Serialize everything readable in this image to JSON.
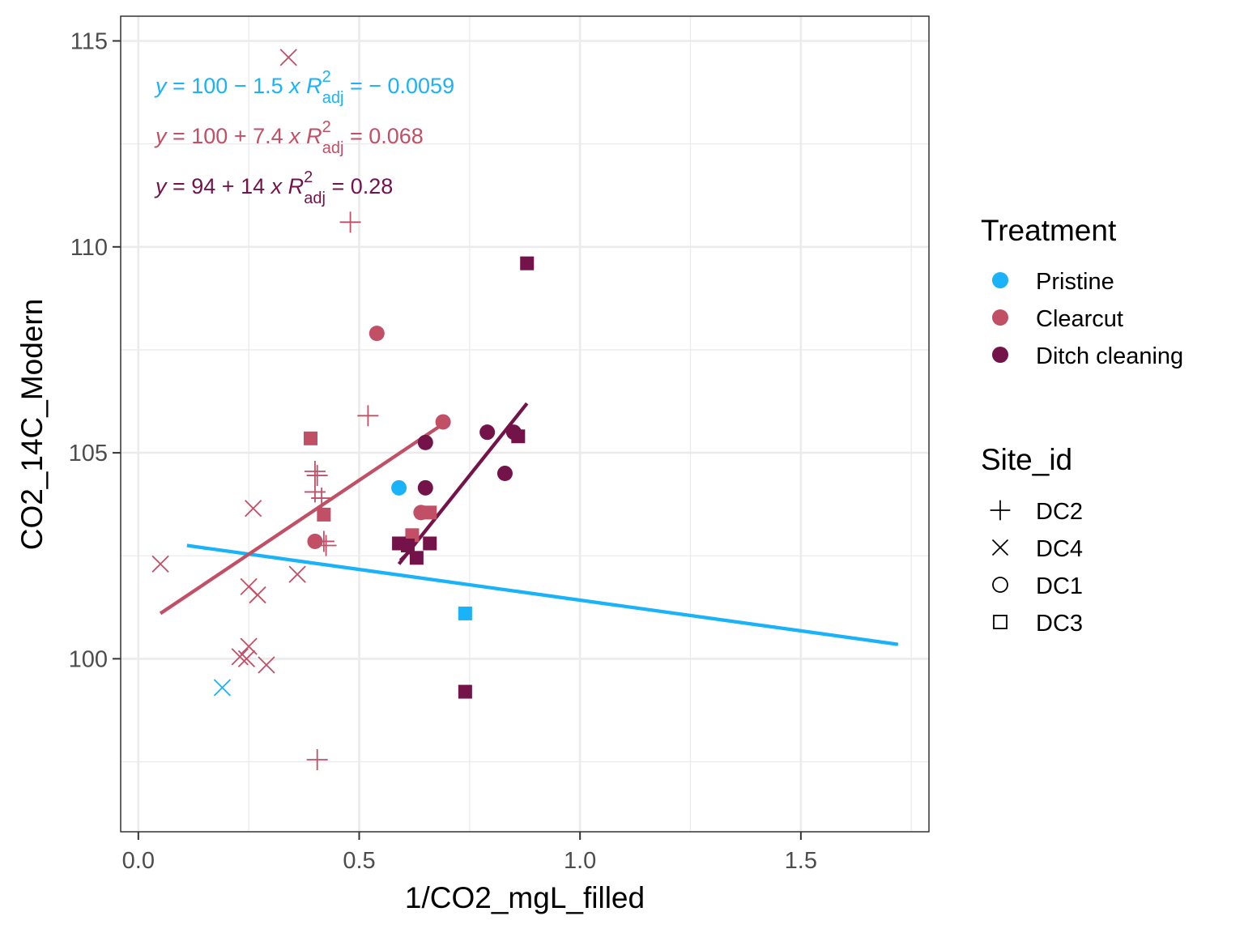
{
  "chart_data": {
    "type": "scatter",
    "title": "",
    "xlabel": "1/CO2_mgL_filled",
    "ylabel": "CO2_14C_Modern",
    "xlim": [
      -0.04,
      1.79
    ],
    "ylim": [
      95.8,
      115.6
    ],
    "x_ticks": [
      0.0,
      0.5,
      1.0,
      1.5
    ],
    "x_tick_labels": [
      "0.0",
      "0.5",
      "1.0",
      "1.5"
    ],
    "y_ticks": [
      100,
      105,
      110,
      115
    ],
    "y_tick_labels": [
      "100",
      "105",
      "110",
      "115"
    ],
    "grid": true,
    "legend_position": "right",
    "colors": {
      "Pristine": "#1ab2f8",
      "Clearcut": "#c14f66",
      "Ditch cleaning": "#741349"
    },
    "legend": {
      "treatment_title": "Treatment",
      "treatment_items": [
        "Pristine",
        "Clearcut",
        "Ditch cleaning"
      ],
      "site_title": "Site_id",
      "site_items": [
        {
          "label": "DC2",
          "shape": "plus"
        },
        {
          "label": "DC4",
          "shape": "cross"
        },
        {
          "label": "DC1",
          "shape": "circle"
        },
        {
          "label": "DC3",
          "shape": "square"
        }
      ]
    },
    "equations": [
      {
        "treatment": "Pristine",
        "lhs": "y",
        "rhs": " = 100 − 1.5 ",
        "xvar": "x",
        "r_label": "R",
        "r_sup": "2",
        "r_sub": "adj",
        "r_value": " = − 0.0059"
      },
      {
        "treatment": "Clearcut",
        "lhs": "y",
        "rhs": " = 100 + 7.4 ",
        "xvar": "x",
        "r_label": "R",
        "r_sup": "2",
        "r_sub": "adj",
        "r_value": " = 0.068"
      },
      {
        "treatment": "Ditch cleaning",
        "lhs": "y",
        "rhs": " = 94 + 14 ",
        "xvar": "x",
        "r_label": "R",
        "r_sup": "2",
        "r_sub": "adj",
        "r_value": " = 0.28"
      }
    ],
    "fit_lines": [
      {
        "treatment": "Pristine",
        "x": [
          0.11,
          1.72
        ],
        "y": [
          102.75,
          100.35
        ]
      },
      {
        "treatment": "Clearcut",
        "x": [
          0.05,
          0.69
        ],
        "y": [
          101.1,
          105.7
        ]
      },
      {
        "treatment": "Ditch cleaning",
        "x": [
          0.59,
          0.88
        ],
        "y": [
          102.3,
          106.2
        ]
      }
    ],
    "series": [
      {
        "treatment": "Pristine",
        "points": [
          {
            "x": 0.59,
            "y": 104.15,
            "site": "DC1"
          },
          {
            "x": 0.74,
            "y": 101.1,
            "site": "DC3"
          },
          {
            "x": 0.19,
            "y": 99.3,
            "site": "DC4"
          }
        ]
      },
      {
        "treatment": "Clearcut",
        "points": [
          {
            "x": 0.34,
            "y": 114.6,
            "site": "DC4"
          },
          {
            "x": 0.05,
            "y": 102.3,
            "site": "DC4"
          },
          {
            "x": 0.26,
            "y": 103.65,
            "site": "DC4"
          },
          {
            "x": 0.36,
            "y": 102.05,
            "site": "DC4"
          },
          {
            "x": 0.25,
            "y": 101.75,
            "site": "DC4"
          },
          {
            "x": 0.27,
            "y": 101.55,
            "site": "DC4"
          },
          {
            "x": 0.25,
            "y": 100.3,
            "site": "DC4"
          },
          {
            "x": 0.23,
            "y": 100.05,
            "site": "DC4"
          },
          {
            "x": 0.245,
            "y": 100.0,
            "site": "DC4"
          },
          {
            "x": 0.29,
            "y": 99.85,
            "site": "DC4"
          },
          {
            "x": 0.48,
            "y": 110.6,
            "site": "DC2"
          },
          {
            "x": 0.52,
            "y": 105.9,
            "site": "DC2"
          },
          {
            "x": 0.4,
            "y": 104.55,
            "site": "DC2"
          },
          {
            "x": 0.405,
            "y": 104.45,
            "site": "DC2"
          },
          {
            "x": 0.4,
            "y": 104.05,
            "site": "DC2"
          },
          {
            "x": 0.415,
            "y": 103.9,
            "site": "DC2"
          },
          {
            "x": 0.42,
            "y": 102.85,
            "site": "DC2"
          },
          {
            "x": 0.425,
            "y": 102.75,
            "site": "DC2"
          },
          {
            "x": 0.405,
            "y": 97.55,
            "site": "DC2"
          },
          {
            "x": 0.54,
            "y": 107.9,
            "site": "DC1"
          },
          {
            "x": 0.69,
            "y": 105.75,
            "site": "DC1"
          },
          {
            "x": 0.64,
            "y": 103.55,
            "site": "DC1"
          },
          {
            "x": 0.4,
            "y": 102.85,
            "site": "DC1"
          },
          {
            "x": 0.39,
            "y": 105.35,
            "site": "DC3"
          },
          {
            "x": 0.42,
            "y": 103.5,
            "site": "DC3"
          },
          {
            "x": 0.66,
            "y": 103.55,
            "site": "DC3"
          },
          {
            "x": 0.62,
            "y": 103.0,
            "site": "DC3"
          }
        ]
      },
      {
        "treatment": "Ditch cleaning",
        "points": [
          {
            "x": 0.88,
            "y": 109.6,
            "site": "DC3"
          },
          {
            "x": 0.86,
            "y": 105.4,
            "site": "DC3"
          },
          {
            "x": 0.59,
            "y": 102.8,
            "site": "DC3"
          },
          {
            "x": 0.61,
            "y": 102.75,
            "site": "DC3"
          },
          {
            "x": 0.66,
            "y": 102.8,
            "site": "DC3"
          },
          {
            "x": 0.63,
            "y": 102.45,
            "site": "DC3"
          },
          {
            "x": 0.74,
            "y": 99.2,
            "site": "DC3"
          },
          {
            "x": 0.79,
            "y": 105.5,
            "site": "DC1"
          },
          {
            "x": 0.85,
            "y": 105.5,
            "site": "DC1"
          },
          {
            "x": 0.65,
            "y": 105.25,
            "site": "DC1"
          },
          {
            "x": 0.65,
            "y": 104.15,
            "site": "DC1"
          },
          {
            "x": 0.83,
            "y": 104.5,
            "site": "DC1"
          },
          {
            "x": 0.61,
            "y": 102.6,
            "site": "DC4"
          }
        ]
      }
    ]
  }
}
